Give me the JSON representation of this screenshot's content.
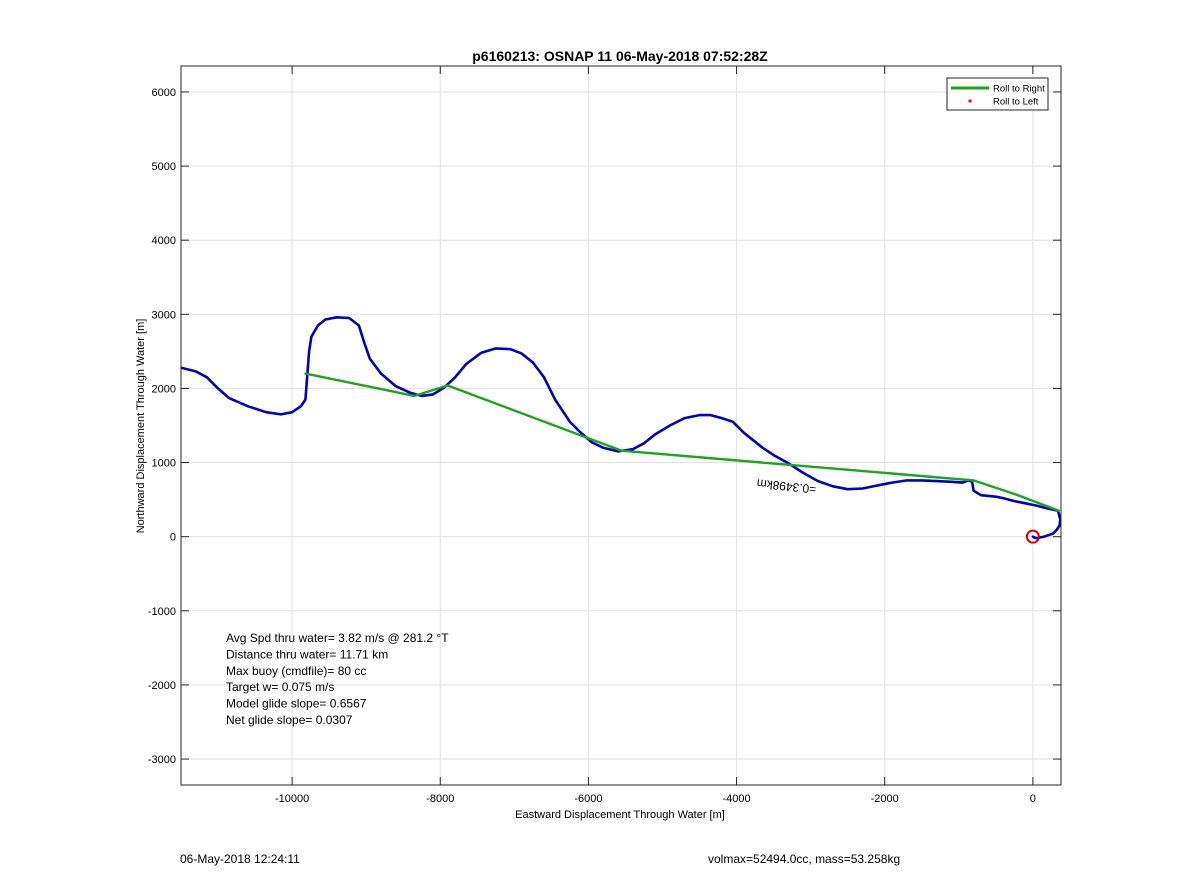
{
  "chart_data": {
    "type": "line",
    "title": "p6160213: OSNAP 11 06-May-2018 07:52:28Z",
    "xlabel": "Eastward Displacement Through Water [m]",
    "ylabel": "Northward Displacement Through Water [m]",
    "xlim": [
      -11500,
      380
    ],
    "ylim": [
      -3350,
      6350
    ],
    "xticks": [
      -10000,
      -8000,
      -6000,
      -4000,
      -2000,
      0
    ],
    "yticks": [
      -3000,
      -2000,
      -1000,
      0,
      1000,
      2000,
      3000,
      4000,
      5000,
      6000
    ],
    "grid": true,
    "legend": {
      "placement": "top-right",
      "entries": [
        {
          "label": "Roll to Right",
          "color": "#1aa61a",
          "marker": "line"
        },
        {
          "label": "Roll to Left",
          "color": "#ff0000",
          "marker": "dot"
        }
      ]
    },
    "series": [
      {
        "label": "trajectory",
        "color": "#0000c0",
        "x": [
          -11500,
          -11300,
          -11150,
          -11000,
          -10850,
          -10600,
          -10350,
          -10150,
          -10000,
          -9880,
          -9820,
          -9790,
          -9770,
          -9740,
          -9650,
          -9550,
          -9400,
          -9230,
          -9100,
          -9020,
          -8950,
          -8800,
          -8600,
          -8400,
          -8250,
          -8100,
          -7950,
          -7800,
          -7650,
          -7450,
          -7250,
          -7050,
          -6900,
          -6750,
          -6600,
          -6450,
          -6350,
          -6250,
          -6100,
          -5950,
          -5800,
          -5600,
          -5400,
          -5250,
          -5100,
          -4900,
          -4700,
          -4500,
          -4350,
          -4200,
          -4050,
          -3900,
          -3800,
          -3650,
          -3500,
          -3300,
          -3100,
          -2900,
          -2700,
          -2500,
          -2300,
          -2100,
          -1900,
          -1700,
          -1500,
          -1300,
          -1100,
          -950,
          -870,
          -820,
          -800,
          -700,
          -600,
          -500,
          -400,
          -250,
          -100,
          50,
          200,
          340,
          370,
          360,
          320,
          270,
          210,
          150,
          100,
          60,
          30,
          10,
          0
        ],
        "y": [
          2280,
          2230,
          2150,
          2000,
          1870,
          1760,
          1680,
          1650,
          1680,
          1760,
          1850,
          2250,
          2500,
          2700,
          2850,
          2930,
          2960,
          2950,
          2850,
          2600,
          2400,
          2200,
          2030,
          1940,
          1900,
          1920,
          2010,
          2150,
          2330,
          2480,
          2540,
          2530,
          2470,
          2350,
          2150,
          1850,
          1700,
          1550,
          1400,
          1270,
          1200,
          1150,
          1180,
          1260,
          1380,
          1500,
          1600,
          1640,
          1640,
          1600,
          1550,
          1400,
          1320,
          1200,
          1100,
          990,
          860,
          750,
          680,
          640,
          650,
          690,
          730,
          760,
          760,
          750,
          740,
          730,
          760,
          740,
          620,
          560,
          550,
          540,
          520,
          480,
          450,
          420,
          380,
          350,
          230,
          150,
          90,
          40,
          20,
          0,
          -10,
          -20,
          -15,
          -5,
          0
        ]
      },
      {
        "label": "Roll to Right",
        "color": "#1aa61a",
        "x": [
          -9820,
          -8350,
          -7900,
          -5550,
          -800,
          -200,
          350
        ],
        "y": [
          2200,
          1900,
          2040,
          1160,
          760,
          560,
          350
        ]
      }
    ],
    "annotations": [
      {
        "text": "=0.3498km",
        "x": -2920,
        "y": 690,
        "rotation_deg": 186
      },
      {
        "text": "Avg Spd thru water=  3.82 m/s @ 281.2 °T"
      },
      {
        "text": "Distance thru water= 11.71 km"
      },
      {
        "text": "Max buoy (cmdfile)= 80 cc"
      },
      {
        "text": "Target w= 0.075 m/s"
      },
      {
        "text": "Model glide slope= 0.6567"
      },
      {
        "text": "Net glide slope= 0.0307"
      }
    ],
    "end_marker": {
      "x": 0,
      "y": 0,
      "color": "#e00000"
    }
  },
  "footer": {
    "timestamp": "06-May-2018 12:24:11",
    "vol_mass": "volmax=52494.0cc, mass=53.258kg"
  }
}
